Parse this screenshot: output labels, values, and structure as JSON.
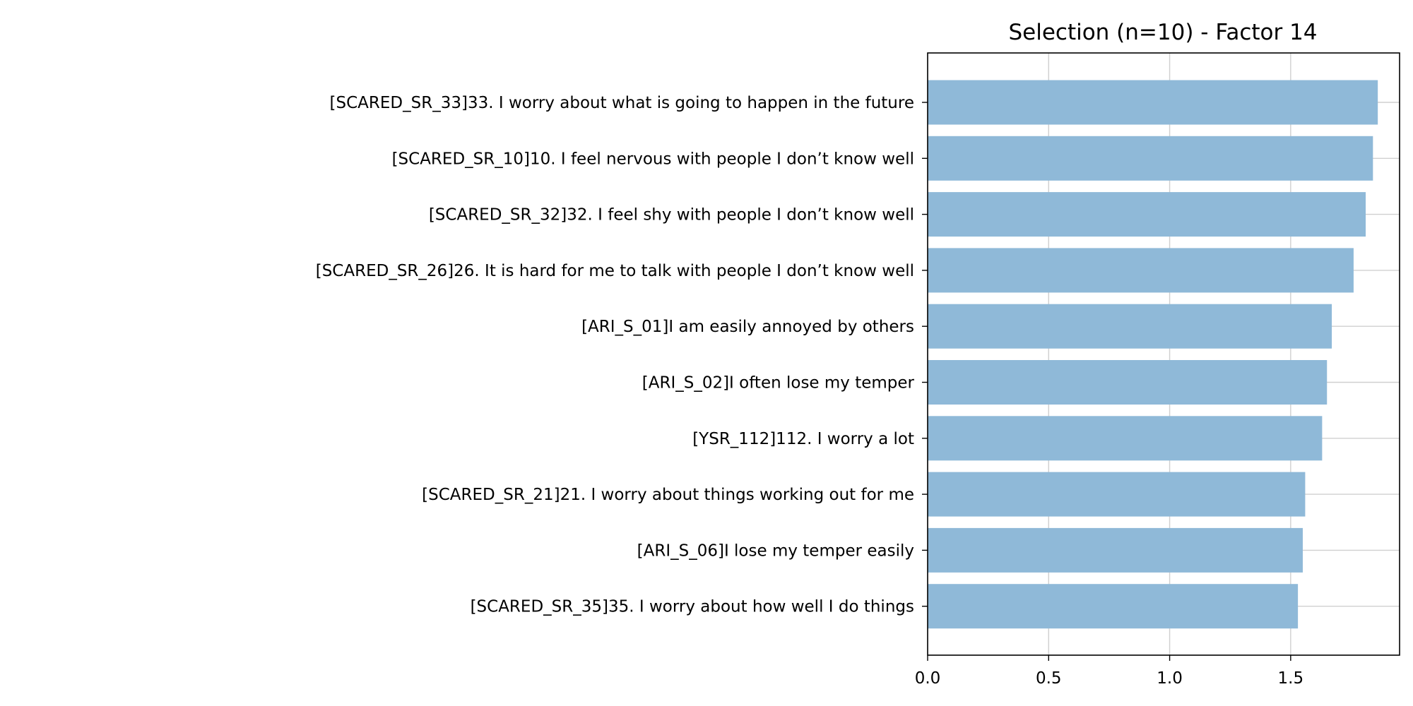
{
  "chart_data": {
    "type": "bar",
    "orientation": "horizontal",
    "title": "Selection (n=10) - Factor 14",
    "xlabel": "",
    "ylabel": "",
    "xlim": [
      0,
      1.95
    ],
    "xticks": [
      "0.0",
      "0.5",
      "1.0",
      "1.5"
    ],
    "grid": true,
    "bar_color": "#8fb9d8",
    "categories": [
      "[SCARED_SR_33]33. I worry about what is going to happen in the future",
      "[SCARED_SR_10]10. I feel nervous with people I don’t know well",
      "[SCARED_SR_32]32. I feel shy with people I don’t know well",
      "[SCARED_SR_26]26. It is hard for me to talk with people I don’t know well",
      "[ARI_S_01]I am easily annoyed by others",
      "[ARI_S_02]I often lose my temper",
      "[YSR_112]112. I worry a lot",
      "[SCARED_SR_21]21. I worry about things working out for me",
      "[ARI_S_06]I lose my temper easily",
      "[SCARED_SR_35]35. I worry about how well I do things"
    ],
    "values": [
      1.86,
      1.84,
      1.81,
      1.76,
      1.67,
      1.65,
      1.63,
      1.56,
      1.55,
      1.53
    ]
  }
}
